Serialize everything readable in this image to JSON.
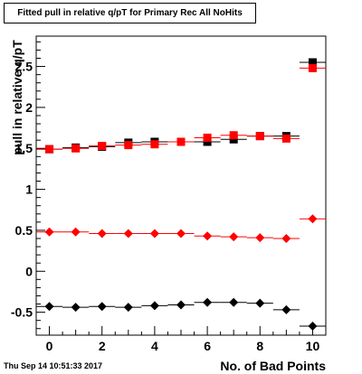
{
  "title": "Fitted pull in relative q/pT for Primary Rec All NoHits",
  "timestamp": "Thu Sep 14 10:51:33 2017",
  "chart_data": {
    "type": "scatter",
    "title": "Fitted pull in relative q/pT for Primary Rec All NoHits",
    "xlabel": "No. of Bad Points",
    "ylabel": "pull in relative q/pT",
    "xlim": [
      -0.5,
      10.5
    ],
    "ylim": [
      -0.78,
      2.87
    ],
    "x_ticks": [
      0,
      2,
      4,
      6,
      8,
      10
    ],
    "y_ticks": [
      -0.5,
      0,
      0.5,
      1,
      1.5,
      2,
      2.5
    ],
    "x_tick_labels": [
      "0",
      "2",
      "4",
      "6",
      "8",
      "10"
    ],
    "y_tick_labels": [
      "-0.5",
      "0",
      "0.5",
      "1",
      "1.5",
      "2",
      "2.5"
    ],
    "grid": false,
    "series": [
      {
        "marker": "square",
        "color": "#000000",
        "x": [
          0,
          1,
          2,
          3,
          4,
          5,
          6,
          7,
          8,
          9,
          10
        ],
        "y": [
          1.49,
          1.51,
          1.52,
          1.57,
          1.58,
          1.58,
          1.58,
          1.61,
          1.65,
          1.65,
          2.55
        ]
      },
      {
        "marker": "square",
        "color": "#ff0000",
        "x": [
          0,
          1,
          2,
          3,
          4,
          5,
          6,
          7,
          8,
          9,
          10
        ],
        "y": [
          1.49,
          1.5,
          1.53,
          1.54,
          1.55,
          1.58,
          1.63,
          1.66,
          1.65,
          1.62,
          2.48
        ]
      },
      {
        "marker": "diamond",
        "color": "#ff0000",
        "x": [
          0,
          1,
          2,
          3,
          4,
          5,
          6,
          7,
          8,
          9,
          10
        ],
        "y": [
          0.48,
          0.48,
          0.46,
          0.46,
          0.46,
          0.46,
          0.43,
          0.42,
          0.41,
          0.4,
          0.64
        ]
      },
      {
        "marker": "diamond",
        "color": "#000000",
        "x": [
          0,
          1,
          2,
          3,
          4,
          5,
          6,
          7,
          8,
          9,
          10
        ],
        "y": [
          -0.43,
          -0.44,
          -0.43,
          -0.44,
          -0.42,
          -0.41,
          -0.38,
          -0.38,
          -0.39,
          -0.47,
          -0.67
        ]
      }
    ]
  }
}
